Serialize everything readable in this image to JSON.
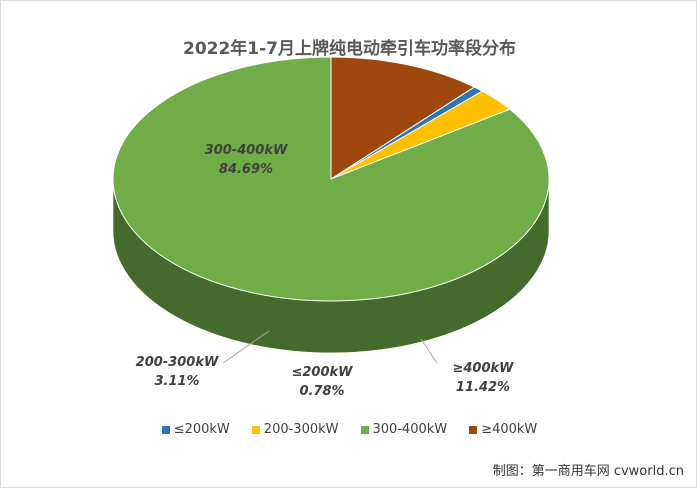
{
  "chart_data": {
    "type": "pie",
    "title": "2022年1-7月上牌纯电动牵引车功率段分布",
    "slices": [
      {
        "label": "≤200kW",
        "value": 0.78,
        "value_label": "0.78%",
        "color": "#2e75b6"
      },
      {
        "label": "200-300kW",
        "value": 3.11,
        "value_label": "3.11%",
        "color": "#ffc000"
      },
      {
        "label": "300-400kW",
        "value": 84.69,
        "value_label": "84.69%",
        "color": "#70ad47"
      },
      {
        "label": "≥400kW",
        "value": 11.42,
        "value_label": "11.42%",
        "color": "#9e480e"
      }
    ],
    "legend_position": "bottom"
  },
  "credit": "制图：第一商用车网 cvworld.cn"
}
